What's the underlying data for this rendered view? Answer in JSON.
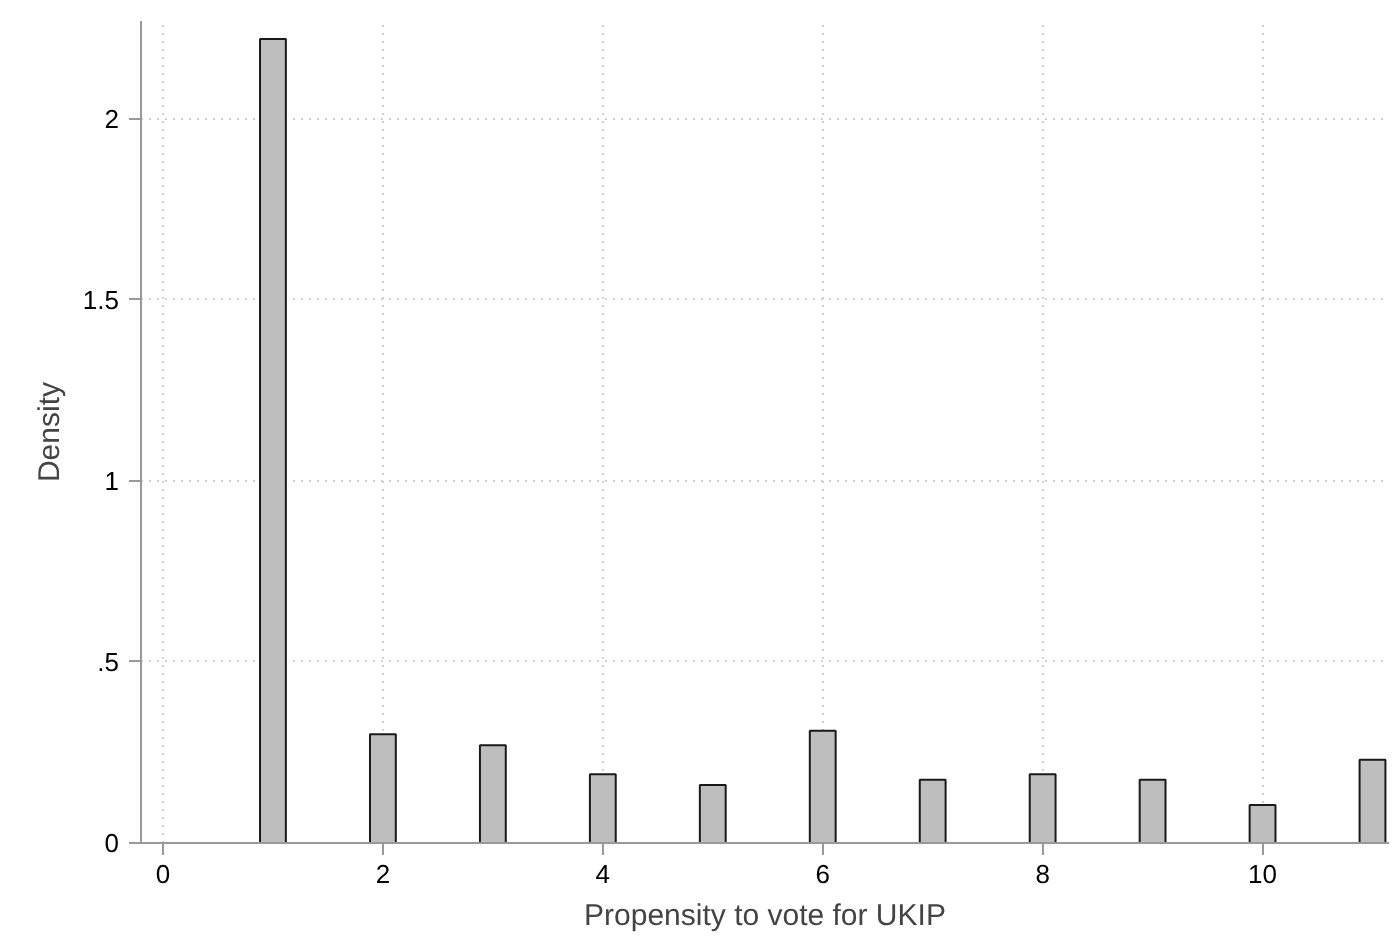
{
  "chart_data": {
    "type": "bar",
    "xlabel": "Propensity to vote for UKIP",
    "ylabel": "Density",
    "x": [
      1,
      2,
      3,
      4,
      5,
      6,
      7,
      8,
      9,
      10,
      11
    ],
    "values": [
      2.22,
      0.3,
      0.27,
      0.19,
      0.16,
      0.31,
      0.175,
      0.19,
      0.175,
      0.105,
      0.23
    ],
    "color": "#bebebe",
    "xlim": [
      -0.2,
      11.15
    ],
    "xticks": [
      0,
      2,
      4,
      6,
      8,
      10
    ],
    "ylim": [
      0,
      2.27
    ],
    "yticks": [
      0,
      {
        "value": 0.5,
        "label": ".5"
      },
      1,
      1.5,
      2
    ],
    "grid": true
  }
}
